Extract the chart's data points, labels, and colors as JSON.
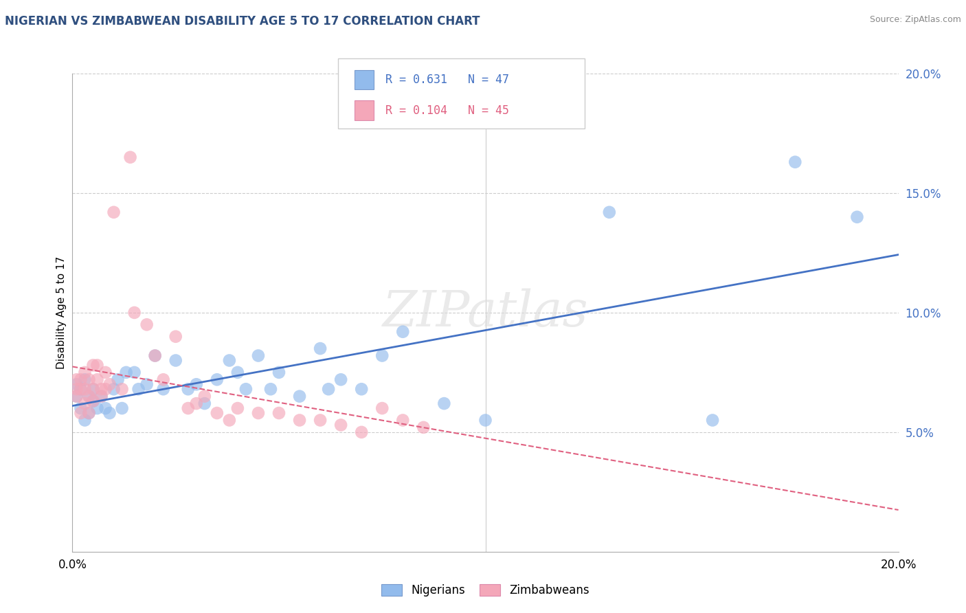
{
  "title": "NIGERIAN VS ZIMBABWEAN DISABILITY AGE 5 TO 17 CORRELATION CHART",
  "source": "Source: ZipAtlas.com",
  "ylabel": "Disability Age 5 to 17",
  "xlim": [
    0.0,
    0.2
  ],
  "ylim": [
    0.0,
    0.2
  ],
  "nigerian_R": "0.631",
  "nigerian_N": "47",
  "zimbabwean_R": "0.104",
  "zimbabwean_N": "45",
  "nigerian_color": "#92BBEC",
  "zimbabwean_color": "#F4A7B9",
  "nigerian_line_color": "#4472C4",
  "zimbabwean_line_color": "#E06080",
  "watermark": "ZIPatlas",
  "nigerian_x": [
    0.001,
    0.001,
    0.002,
    0.002,
    0.003,
    0.003,
    0.004,
    0.004,
    0.005,
    0.005,
    0.006,
    0.007,
    0.008,
    0.009,
    0.01,
    0.011,
    0.012,
    0.013,
    0.015,
    0.016,
    0.018,
    0.02,
    0.022,
    0.025,
    0.028,
    0.03,
    0.032,
    0.035,
    0.038,
    0.04,
    0.042,
    0.045,
    0.048,
    0.05,
    0.055,
    0.06,
    0.062,
    0.065,
    0.07,
    0.075,
    0.08,
    0.09,
    0.1,
    0.13,
    0.155,
    0.175,
    0.19
  ],
  "nigerian_y": [
    0.065,
    0.07,
    0.06,
    0.068,
    0.055,
    0.072,
    0.058,
    0.065,
    0.063,
    0.068,
    0.06,
    0.065,
    0.06,
    0.058,
    0.068,
    0.072,
    0.06,
    0.075,
    0.075,
    0.068,
    0.07,
    0.082,
    0.068,
    0.08,
    0.068,
    0.07,
    0.062,
    0.072,
    0.08,
    0.075,
    0.068,
    0.082,
    0.068,
    0.075,
    0.065,
    0.085,
    0.068,
    0.072,
    0.068,
    0.082,
    0.092,
    0.062,
    0.055,
    0.142,
    0.055,
    0.163,
    0.14
  ],
  "zimbabwean_x": [
    0.001,
    0.001,
    0.001,
    0.002,
    0.002,
    0.002,
    0.003,
    0.003,
    0.003,
    0.004,
    0.004,
    0.004,
    0.005,
    0.005,
    0.005,
    0.006,
    0.006,
    0.007,
    0.007,
    0.008,
    0.008,
    0.009,
    0.01,
    0.012,
    0.014,
    0.015,
    0.018,
    0.02,
    0.022,
    0.025,
    0.028,
    0.03,
    0.032,
    0.035,
    0.038,
    0.04,
    0.045,
    0.05,
    0.055,
    0.06,
    0.065,
    0.07,
    0.075,
    0.08,
    0.085
  ],
  "zimbabwean_y": [
    0.068,
    0.072,
    0.065,
    0.068,
    0.058,
    0.072,
    0.068,
    0.062,
    0.075,
    0.058,
    0.065,
    0.072,
    0.063,
    0.068,
    0.078,
    0.072,
    0.078,
    0.068,
    0.065,
    0.068,
    0.075,
    0.07,
    0.142,
    0.068,
    0.165,
    0.1,
    0.095,
    0.082,
    0.072,
    0.09,
    0.06,
    0.062,
    0.065,
    0.058,
    0.055,
    0.06,
    0.058,
    0.058,
    0.055,
    0.055,
    0.053,
    0.05,
    0.06,
    0.055,
    0.052
  ]
}
